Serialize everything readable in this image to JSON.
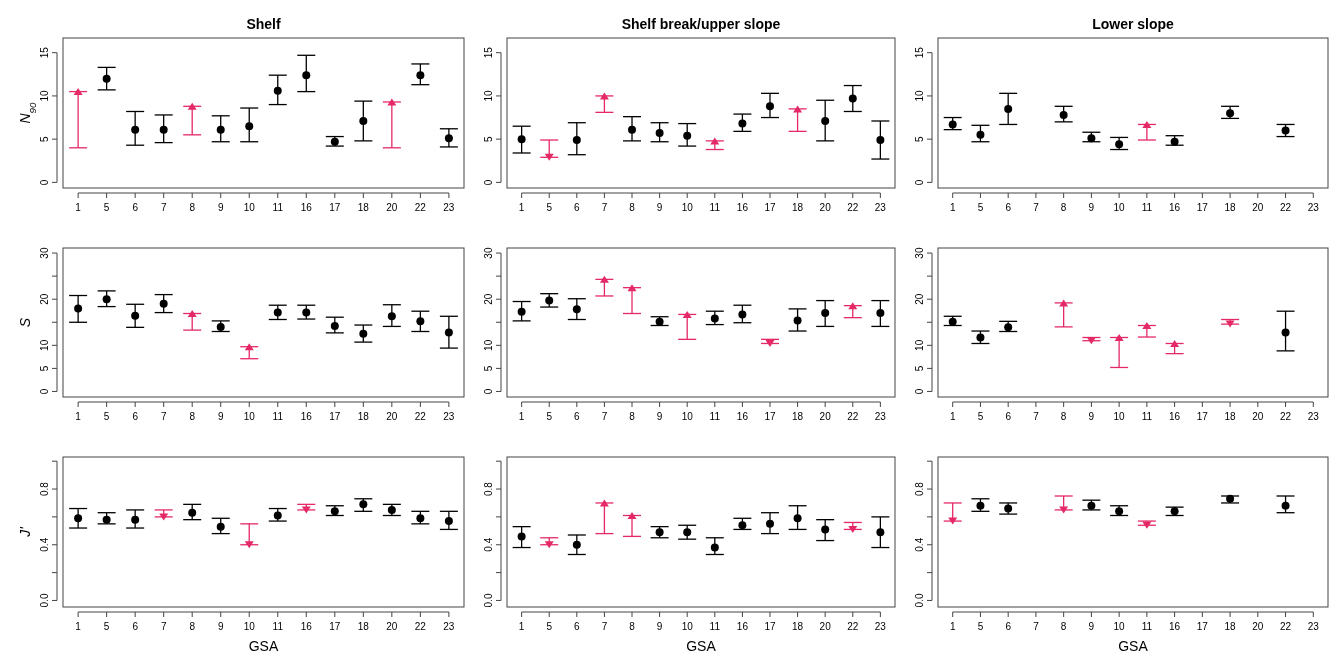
{
  "chart_data": [
    {
      "type": "scatter",
      "title": "Shelf",
      "ylabel": "N$_{90}$",
      "categories": [
        "1",
        "5",
        "6",
        "7",
        "8",
        "9",
        "10",
        "11",
        "16",
        "17",
        "18",
        "20",
        "22",
        "23"
      ],
      "ylim": [
        -0.65,
        16.7
      ],
      "yticks": [
        0,
        5,
        10,
        15
      ],
      "series": [
        {
          "color": "#000000",
          "marker": "circle",
          "values": [
            null,
            12.0,
            6.1,
            6.1,
            null,
            6.1,
            6.5,
            10.6,
            12.4,
            4.7,
            7.1,
            null,
            12.4,
            5.1
          ],
          "errors": [
            null,
            [
              10.7,
              13.3
            ],
            [
              4.3,
              8.2
            ],
            [
              4.6,
              7.8
            ],
            null,
            [
              4.7,
              7.7
            ],
            [
              4.7,
              8.6
            ],
            [
              9.0,
              12.4
            ],
            [
              10.5,
              14.7
            ],
            [
              4.2,
              5.3
            ],
            [
              4.8,
              9.4
            ],
            null,
            [
              11.3,
              13.7
            ],
            [
              4.1,
              6.2
            ]
          ]
        },
        {
          "color": "#e52866",
          "marker": "triangle",
          "values": [
            10.5,
            null,
            null,
            null,
            8.8,
            null,
            null,
            null,
            null,
            null,
            null,
            9.3,
            null,
            null
          ],
          "errors": [
            [
              4.0,
              10.5
            ],
            null,
            null,
            null,
            [
              5.5,
              8.8
            ],
            null,
            null,
            null,
            null,
            null,
            null,
            [
              4.0,
              9.3
            ],
            null,
            null
          ]
        }
      ]
    },
    {
      "type": "scatter",
      "title": "Shelf break/upper slope",
      "categories": [
        "1",
        "5",
        "6",
        "7",
        "8",
        "9",
        "10",
        "11",
        "16",
        "17",
        "18",
        "20",
        "22",
        "23"
      ],
      "ylim": [
        -0.65,
        16.7
      ],
      "yticks": [
        0,
        5,
        10,
        15
      ],
      "series": [
        {
          "color": "#000000",
          "marker": "circle",
          "values": [
            5.0,
            null,
            4.9,
            null,
            6.1,
            5.7,
            5.4,
            null,
            6.8,
            8.8,
            null,
            7.1,
            9.7,
            4.9
          ],
          "errors": [
            [
              3.4,
              6.5
            ],
            null,
            [
              3.2,
              6.9
            ],
            null,
            [
              4.8,
              7.6
            ],
            [
              4.7,
              6.9
            ],
            [
              4.2,
              6.8
            ],
            null,
            [
              5.9,
              7.9
            ],
            [
              7.5,
              10.3
            ],
            null,
            [
              4.8,
              9.5
            ],
            [
              8.2,
              11.2
            ],
            [
              2.7,
              7.1
            ]
          ]
        },
        {
          "color": "#e52866",
          "marker": "triangle",
          "values": [
            null,
            2.9,
            null,
            10.0,
            null,
            null,
            null,
            4.8,
            null,
            null,
            8.5,
            null,
            null,
            null
          ],
          "errors": [
            null,
            [
              2.9,
              4.9
            ],
            null,
            [
              8.1,
              10.0
            ],
            null,
            null,
            null,
            [
              3.8,
              4.8
            ],
            null,
            null,
            [
              5.9,
              8.5
            ],
            null,
            null,
            null
          ]
        }
      ]
    },
    {
      "type": "scatter",
      "title": "Lower slope",
      "categories": [
        "1",
        "5",
        "6",
        "7",
        "8",
        "9",
        "10",
        "11",
        "16",
        "17",
        "18",
        "20",
        "22",
        "23"
      ],
      "ylim": [
        -0.65,
        16.7
      ],
      "yticks": [
        0,
        5,
        10,
        15
      ],
      "series": [
        {
          "color": "#000000",
          "marker": "circle",
          "values": [
            6.7,
            5.5,
            8.5,
            null,
            7.8,
            5.1,
            4.4,
            null,
            4.7,
            null,
            8.0,
            null,
            6.0,
            null
          ],
          "errors": [
            [
              6.1,
              7.5
            ],
            [
              4.7,
              6.6
            ],
            [
              6.7,
              10.3
            ],
            null,
            [
              7.0,
              8.8
            ],
            [
              4.7,
              5.8
            ],
            [
              3.8,
              5.2
            ],
            null,
            [
              4.3,
              5.4
            ],
            null,
            [
              7.4,
              8.8
            ],
            null,
            [
              5.3,
              6.7
            ],
            null
          ]
        },
        {
          "color": "#e52866",
          "marker": "triangle",
          "values": [
            null,
            null,
            null,
            null,
            null,
            null,
            null,
            6.7,
            null,
            null,
            null,
            null,
            null,
            null
          ],
          "errors": [
            null,
            null,
            null,
            null,
            null,
            null,
            null,
            [
              4.9,
              6.7
            ],
            null,
            null,
            null,
            null,
            null,
            null
          ]
        }
      ]
    },
    {
      "type": "scatter",
      "ylabel": "S",
      "categories": [
        "1",
        "5",
        "6",
        "7",
        "8",
        "9",
        "10",
        "11",
        "16",
        "17",
        "18",
        "20",
        "22",
        "23"
      ],
      "ylim": [
        -1.2,
        31.1
      ],
      "yticks": [
        0,
        5,
        10,
        {
          "value": 15,
          "label": null
        },
        20,
        {
          "value": 25,
          "label": null
        },
        30
      ],
      "series": [
        {
          "color": "#000000",
          "marker": "circle",
          "values": [
            18.0,
            20.0,
            16.4,
            19.0,
            null,
            14.0,
            null,
            17.1,
            17.1,
            14.2,
            12.5,
            16.3,
            15.2,
            12.8
          ],
          "errors": [
            [
              15.0,
              20.8
            ],
            [
              18.4,
              21.8
            ],
            [
              13.9,
              18.9
            ],
            [
              17.1,
              21.0
            ],
            null,
            [
              13.0,
              15.3
            ],
            null,
            [
              15.6,
              18.7
            ],
            [
              15.7,
              18.7
            ],
            [
              12.7,
              16.1
            ],
            [
              10.7,
              14.4
            ],
            [
              14.1,
              18.8
            ],
            [
              13.0,
              17.4
            ],
            [
              9.4,
              16.3
            ]
          ]
        },
        {
          "color": "#e52866",
          "marker": "triangle",
          "values": [
            null,
            null,
            null,
            null,
            16.9,
            null,
            9.7,
            null,
            null,
            null,
            null,
            null,
            null,
            null
          ],
          "errors": [
            null,
            null,
            null,
            null,
            [
              13.3,
              16.9
            ],
            null,
            [
              7.1,
              9.7
            ],
            null,
            null,
            null,
            null,
            null,
            null,
            null
          ]
        }
      ]
    },
    {
      "type": "scatter",
      "categories": [
        "1",
        "5",
        "6",
        "7",
        "8",
        "9",
        "10",
        "11",
        "16",
        "17",
        "18",
        "20",
        "22",
        "23"
      ],
      "ylim": [
        -1.2,
        31.1
      ],
      "yticks": [
        0,
        5,
        10,
        {
          "value": 15,
          "label": null
        },
        20,
        {
          "value": 25,
          "label": null
        },
        30
      ],
      "series": [
        {
          "color": "#000000",
          "marker": "circle",
          "values": [
            17.3,
            19.7,
            17.8,
            null,
            null,
            15.1,
            null,
            15.8,
            16.7,
            null,
            15.4,
            17.0,
            null,
            17.0
          ],
          "errors": [
            [
              15.3,
              19.5
            ],
            [
              18.3,
              21.2
            ],
            [
              15.6,
              20.1
            ],
            null,
            null,
            [
              14.3,
              16.2
            ],
            null,
            [
              14.5,
              17.4
            ],
            [
              14.9,
              18.7
            ],
            null,
            [
              13.1,
              17.9
            ],
            [
              14.1,
              19.7
            ],
            null,
            [
              14.1,
              19.7
            ]
          ]
        },
        {
          "color": "#e52866",
          "marker": "triangle",
          "values": [
            null,
            null,
            null,
            24.3,
            22.5,
            null,
            16.7,
            null,
            null,
            10.4,
            null,
            null,
            18.6,
            null
          ],
          "errors": [
            null,
            null,
            null,
            [
              20.7,
              24.3
            ],
            [
              16.9,
              22.5
            ],
            null,
            [
              11.3,
              16.7
            ],
            null,
            null,
            [
              10.4,
              11.3
            ],
            null,
            null,
            [
              16.0,
              18.6
            ],
            null
          ]
        }
      ]
    },
    {
      "type": "scatter",
      "categories": [
        "1",
        "5",
        "6",
        "7",
        "8",
        "9",
        "10",
        "11",
        "16",
        "17",
        "18",
        "20",
        "22",
        "23"
      ],
      "ylim": [
        -1.2,
        31.1
      ],
      "yticks": [
        0,
        5,
        10,
        {
          "value": 15,
          "label": null
        },
        20,
        {
          "value": 25,
          "label": null
        },
        30
      ],
      "series": [
        {
          "color": "#000000",
          "marker": "circle",
          "values": [
            15.1,
            11.7,
            13.9,
            null,
            null,
            null,
            null,
            null,
            null,
            null,
            null,
            null,
            12.8,
            null
          ],
          "errors": [
            [
              14.3,
              16.3
            ],
            [
              10.4,
              13.1
            ],
            [
              13.0,
              15.2
            ],
            null,
            null,
            null,
            null,
            null,
            null,
            null,
            null,
            null,
            [
              8.8,
              17.4
            ],
            null
          ]
        },
        {
          "color": "#e52866",
          "marker": "triangle",
          "values": [
            null,
            null,
            null,
            null,
            19.2,
            11.0,
            11.7,
            14.3,
            10.4,
            null,
            14.6,
            null,
            null,
            null
          ],
          "errors": [
            null,
            null,
            null,
            null,
            [
              14.0,
              19.2
            ],
            [
              11.0,
              11.7
            ],
            [
              5.2,
              11.7
            ],
            [
              11.8,
              14.3
            ],
            [
              8.2,
              10.4
            ],
            null,
            [
              14.6,
              15.6
            ],
            null,
            null,
            null
          ]
        }
      ]
    },
    {
      "type": "scatter",
      "xlabel": "GSA",
      "ylabel": "J'",
      "categories": [
        "1",
        "5",
        "6",
        "7",
        "8",
        "9",
        "10",
        "11",
        "16",
        "17",
        "18",
        "20",
        "22",
        "23"
      ],
      "ylim": [
        -0.047,
        1.03
      ],
      "yticks": [
        {
          "value": 0,
          "label": "0.0"
        },
        {
          "value": 0.2,
          "label": null
        },
        0.4,
        {
          "value": 0.6,
          "label": null
        },
        0.8,
        {
          "value": 1,
          "label": null
        }
      ],
      "series": [
        {
          "color": "#000000",
          "marker": "circle",
          "values": [
            0.59,
            0.58,
            0.58,
            null,
            0.63,
            0.53,
            null,
            0.61,
            null,
            0.64,
            0.69,
            0.65,
            0.59,
            0.57
          ],
          "errors": [
            [
              0.52,
              0.66
            ],
            [
              0.55,
              0.63
            ],
            [
              0.52,
              0.65
            ],
            null,
            [
              0.58,
              0.69
            ],
            [
              0.48,
              0.59
            ],
            null,
            [
              0.57,
              0.66
            ],
            null,
            [
              0.61,
              0.68
            ],
            [
              0.64,
              0.73
            ],
            [
              0.61,
              0.69
            ],
            [
              0.55,
              0.64
            ],
            [
              0.51,
              0.64
            ]
          ]
        },
        {
          "color": "#e52866",
          "marker": "triangle",
          "values": [
            null,
            null,
            null,
            0.6,
            null,
            null,
            0.4,
            null,
            0.65,
            null,
            null,
            null,
            null,
            null
          ],
          "errors": [
            null,
            null,
            null,
            [
              0.6,
              0.65
            ],
            null,
            null,
            [
              0.4,
              0.55
            ],
            null,
            [
              0.65,
              0.69
            ],
            null,
            null,
            null,
            null,
            null
          ]
        }
      ]
    },
    {
      "type": "scatter",
      "xlabel": "GSA",
      "categories": [
        "1",
        "5",
        "6",
        "7",
        "8",
        "9",
        "10",
        "11",
        "16",
        "17",
        "18",
        "20",
        "22",
        "23"
      ],
      "ylim": [
        -0.047,
        1.03
      ],
      "yticks": [
        {
          "value": 0,
          "label": "0.0"
        },
        {
          "value": 0.2,
          "label": null
        },
        0.4,
        {
          "value": 0.6,
          "label": null
        },
        0.8,
        {
          "value": 1,
          "label": null
        }
      ],
      "series": [
        {
          "color": "#000000",
          "marker": "circle",
          "values": [
            0.46,
            null,
            0.4,
            null,
            null,
            0.49,
            0.49,
            0.38,
            0.54,
            0.55,
            0.59,
            0.51,
            null,
            0.49
          ],
          "errors": [
            [
              0.38,
              0.53
            ],
            null,
            [
              0.33,
              0.47
            ],
            null,
            null,
            [
              0.45,
              0.53
            ],
            [
              0.44,
              0.54
            ],
            [
              0.33,
              0.45
            ],
            [
              0.51,
              0.59
            ],
            [
              0.48,
              0.63
            ],
            [
              0.51,
              0.68
            ],
            [
              0.43,
              0.58
            ],
            null,
            [
              0.38,
              0.6
            ]
          ]
        },
        {
          "color": "#e52866",
          "marker": "triangle",
          "values": [
            null,
            0.4,
            null,
            0.7,
            0.61,
            null,
            null,
            null,
            null,
            null,
            null,
            null,
            0.51,
            null
          ],
          "errors": [
            null,
            [
              0.4,
              0.45
            ],
            null,
            [
              0.48,
              0.7
            ],
            [
              0.46,
              0.61
            ],
            null,
            null,
            null,
            null,
            null,
            null,
            null,
            [
              0.51,
              0.56
            ],
            null
          ]
        }
      ]
    },
    {
      "type": "scatter",
      "xlabel": "GSA",
      "categories": [
        "1",
        "5",
        "6",
        "7",
        "8",
        "9",
        "10",
        "11",
        "16",
        "17",
        "18",
        "20",
        "22",
        "23"
      ],
      "ylim": [
        -0.047,
        1.03
      ],
      "yticks": [
        {
          "value": 0,
          "label": "0.0"
        },
        {
          "value": 0.2,
          "label": null
        },
        0.4,
        {
          "value": 0.6,
          "label": null
        },
        0.8,
        {
          "value": 1,
          "label": null
        }
      ],
      "series": [
        {
          "color": "#000000",
          "marker": "circle",
          "values": [
            null,
            0.68,
            0.66,
            null,
            null,
            0.68,
            0.64,
            null,
            0.64,
            null,
            0.73,
            null,
            0.68,
            null
          ],
          "errors": [
            null,
            [
              0.64,
              0.73
            ],
            [
              0.62,
              0.7
            ],
            null,
            null,
            [
              0.65,
              0.72
            ],
            [
              0.61,
              0.68
            ],
            null,
            [
              0.61,
              0.67
            ],
            null,
            [
              0.7,
              0.75
            ],
            null,
            [
              0.63,
              0.75
            ],
            null
          ]
        },
        {
          "color": "#e52866",
          "marker": "triangle",
          "values": [
            0.57,
            null,
            null,
            null,
            0.65,
            null,
            null,
            0.54,
            null,
            null,
            null,
            null,
            null,
            null
          ],
          "errors": [
            [
              0.57,
              0.7
            ],
            null,
            null,
            null,
            [
              0.65,
              0.75
            ],
            null,
            null,
            [
              0.54,
              0.57
            ],
            null,
            null,
            null,
            null,
            null,
            null
          ]
        }
      ]
    }
  ]
}
